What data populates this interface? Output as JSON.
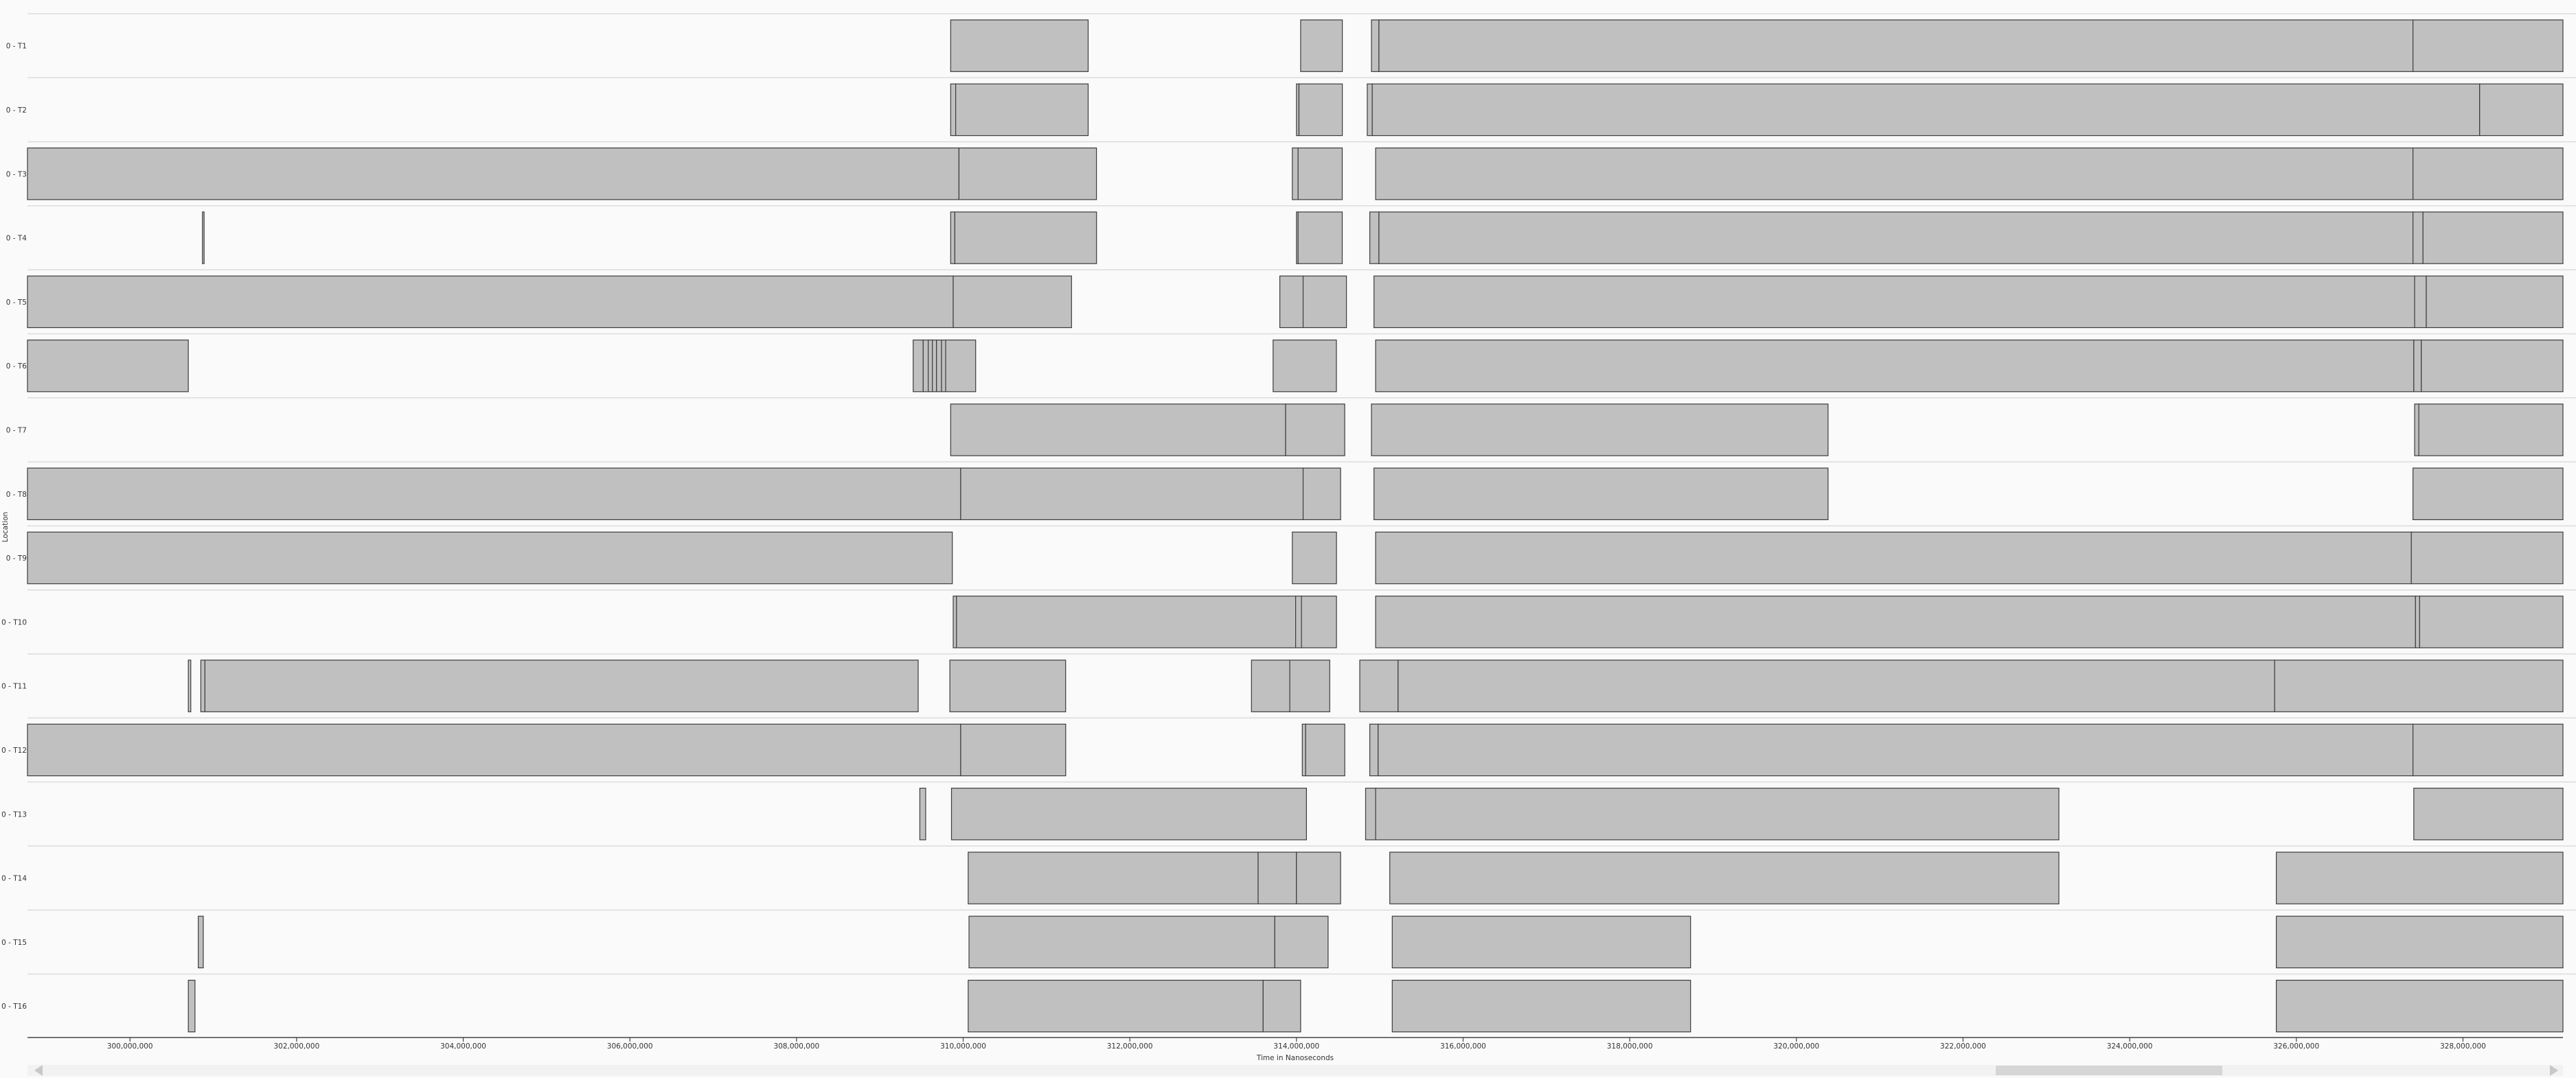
{
  "chart_data": {
    "type": "timeline",
    "xlabel": "Time in Nanoseconds",
    "ylabel": "Location",
    "xlim": [
      298770000,
      329200000
    ],
    "x_ticks": [
      300000000,
      302000000,
      304000000,
      306000000,
      308000000,
      310000000,
      312000000,
      314000000,
      316000000,
      318000000,
      320000000,
      322000000,
      324000000,
      326000000,
      328000000
    ],
    "x_tick_labels": [
      "300,000,000",
      "302,000,000",
      "304,000,000",
      "306,000,000",
      "308,000,000",
      "310,000,000",
      "312,000,000",
      "314,000,000",
      "316,000,000",
      "318,000,000",
      "320,000,000",
      "322,000,000",
      "324,000,000",
      "326,000,000",
      "328,000,000"
    ],
    "grid": false,
    "rows": [
      {
        "label": "0 - T1",
        "intervals": [
          [
            309850000,
            311500000
          ],
          [
            314050000,
            314550000
          ],
          [
            314900000,
            314990000
          ],
          [
            314990000,
            327400000
          ],
          [
            327400000,
            329200000
          ]
        ]
      },
      {
        "label": "0 - T2",
        "intervals": [
          [
            309850000,
            309910000
          ],
          [
            309910000,
            311500000
          ],
          [
            314000000,
            314030000
          ],
          [
            314030000,
            314550000
          ],
          [
            314850000,
            314910000
          ],
          [
            314910000,
            328200000
          ],
          [
            328200000,
            329200000
          ]
        ]
      },
      {
        "label": "0 - T3",
        "intervals": [
          [
            298770000,
            309950000
          ],
          [
            309950000,
            311600000
          ],
          [
            313950000,
            314020000
          ],
          [
            314020000,
            314550000
          ],
          [
            314950000,
            327400000
          ],
          [
            327400000,
            329200000
          ]
        ]
      },
      {
        "label": "0 - T4",
        "intervals": [
          [
            300870000,
            300890000
          ],
          [
            309850000,
            309900000
          ],
          [
            309900000,
            311600000
          ],
          [
            314000000,
            314020000
          ],
          [
            314020000,
            314550000
          ],
          [
            314880000,
            314990000
          ],
          [
            314990000,
            327400000
          ],
          [
            327400000,
            327520000
          ],
          [
            327520000,
            329200000
          ]
        ]
      },
      {
        "label": "0 - T5",
        "intervals": [
          [
            298770000,
            309880000
          ],
          [
            309880000,
            311300000
          ],
          [
            313800000,
            314080000
          ],
          [
            314080000,
            314600000
          ],
          [
            314930000,
            327420000
          ],
          [
            327420000,
            327560000
          ],
          [
            327560000,
            329200000
          ]
        ]
      },
      {
        "label": "0 - T6",
        "intervals": [
          [
            298770000,
            300700000
          ],
          [
            309400000,
            309520000
          ],
          [
            309520000,
            309580000
          ],
          [
            309580000,
            309630000
          ],
          [
            309630000,
            309680000
          ],
          [
            309680000,
            309740000
          ],
          [
            309740000,
            309790000
          ],
          [
            309790000,
            310150000
          ],
          [
            313720000,
            314480000
          ],
          [
            314950000,
            327410000
          ],
          [
            327410000,
            327500000
          ],
          [
            327500000,
            329200000
          ]
        ]
      },
      {
        "label": "0 - T7",
        "intervals": [
          [
            309850000,
            313870000
          ],
          [
            313870000,
            314580000
          ],
          [
            314900000,
            320380000
          ],
          [
            327420000,
            327470000
          ],
          [
            327470000,
            329200000
          ]
        ]
      },
      {
        "label": "0 - T8",
        "intervals": [
          [
            298770000,
            309970000
          ],
          [
            309970000,
            314080000
          ],
          [
            314080000,
            314530000
          ],
          [
            314930000,
            320380000
          ],
          [
            327400000,
            329200000
          ]
        ]
      },
      {
        "label": "0 - T9",
        "intervals": [
          [
            298770000,
            309870000
          ],
          [
            313950000,
            314480000
          ],
          [
            314950000,
            327380000
          ],
          [
            327380000,
            329200000
          ]
        ]
      },
      {
        "label": "0 - T10",
        "intervals": [
          [
            309880000,
            309920000
          ],
          [
            309920000,
            313990000
          ],
          [
            313990000,
            314060000
          ],
          [
            314060000,
            314480000
          ],
          [
            314950000,
            327430000
          ],
          [
            327430000,
            327480000
          ],
          [
            327480000,
            329200000
          ]
        ]
      },
      {
        "label": "0 - T11",
        "intervals": [
          [
            300700000,
            300730000
          ],
          [
            300850000,
            300900000
          ],
          [
            300900000,
            309460000
          ],
          [
            309840000,
            311230000
          ],
          [
            313460000,
            313920000
          ],
          [
            313920000,
            314400000
          ],
          [
            314760000,
            315220000
          ],
          [
            315220000,
            325740000
          ],
          [
            325740000,
            329200000
          ]
        ]
      },
      {
        "label": "0 - T12",
        "intervals": [
          [
            298770000,
            309970000
          ],
          [
            309970000,
            311230000
          ],
          [
            314070000,
            314110000
          ],
          [
            314110000,
            314580000
          ],
          [
            314880000,
            314980000
          ],
          [
            314980000,
            327400000
          ],
          [
            327400000,
            329200000
          ]
        ]
      },
      {
        "label": "0 - T13",
        "intervals": [
          [
            309480000,
            309550000
          ],
          [
            309860000,
            314120000
          ],
          [
            314830000,
            314950000
          ],
          [
            314950000,
            323150000
          ],
          [
            327410000,
            329200000
          ]
        ]
      },
      {
        "label": "0 - T14",
        "intervals": [
          [
            310060000,
            313540000
          ],
          [
            313540000,
            314000000
          ],
          [
            314000000,
            314530000
          ],
          [
            315120000,
            323150000
          ],
          [
            325760000,
            329200000
          ]
        ]
      },
      {
        "label": "0 - T15",
        "intervals": [
          [
            300820000,
            300880000
          ],
          [
            310070000,
            313740000
          ],
          [
            313740000,
            314380000
          ],
          [
            315150000,
            318730000
          ],
          [
            325760000,
            329200000
          ]
        ]
      },
      {
        "label": "0 - T16",
        "intervals": [
          [
            300700000,
            300780000
          ],
          [
            310060000,
            313600000
          ],
          [
            313600000,
            314050000
          ],
          [
            315150000,
            318730000
          ],
          [
            325760000,
            329200000
          ]
        ]
      }
    ]
  },
  "colors": {
    "bar_fill": "#c0c0c0",
    "bar_stroke": "#3c3c3c",
    "background": "#fafafa"
  }
}
